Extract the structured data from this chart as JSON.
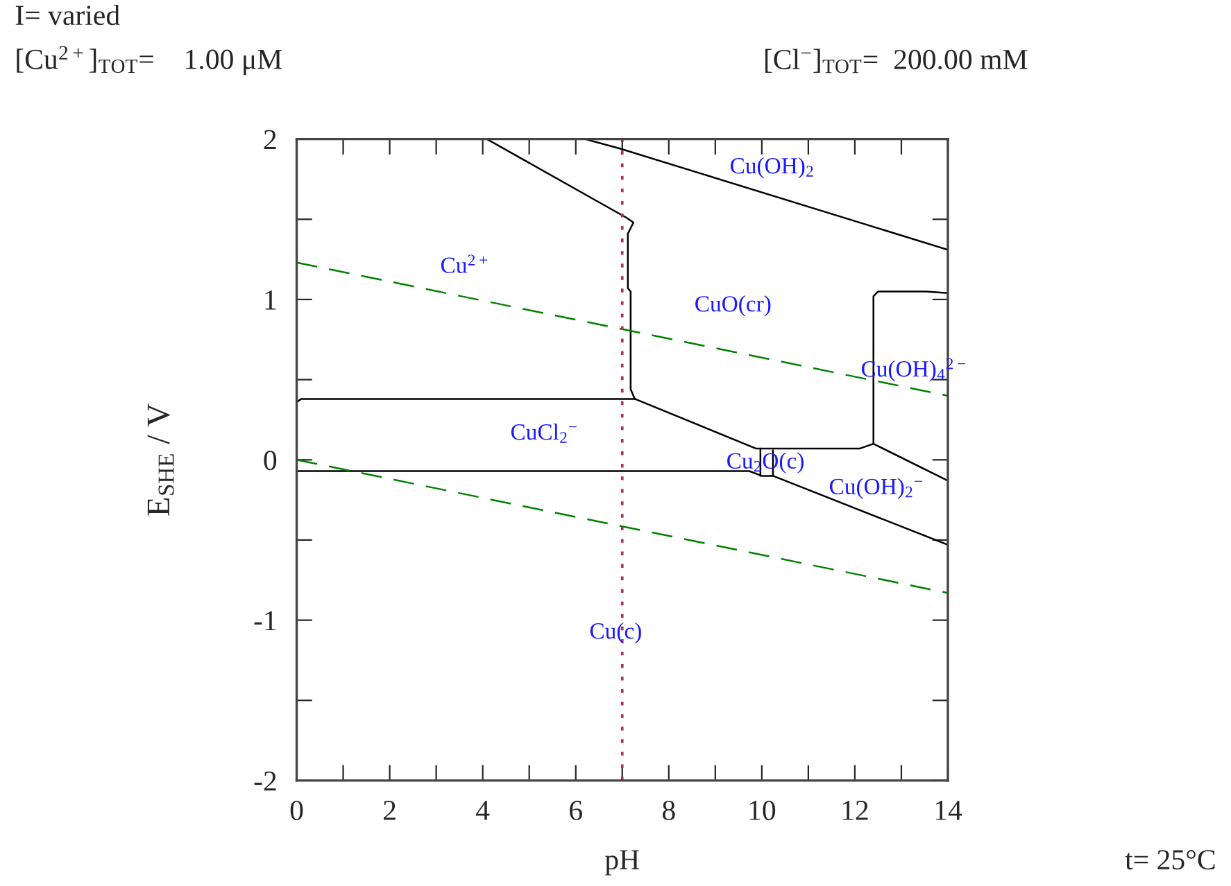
{
  "chart_data": {
    "type": "line",
    "xlabel": "pH",
    "ylabel": "E$_{SHE}$ / V",
    "xlim": [
      0,
      14
    ],
    "ylim": [
      -2,
      2
    ],
    "xticks": [
      0,
      {
        "value": 1,
        "label": null
      },
      2,
      {
        "value": 3,
        "label": null
      },
      4,
      {
        "value": 5,
        "label": null
      },
      6,
      {
        "value": 7,
        "label": null
      },
      8,
      {
        "value": 9,
        "label": null
      },
      10,
      {
        "value": 11,
        "label": null
      },
      12,
      {
        "value": 13,
        "label": null
      },
      14
    ],
    "yticks": [
      -2,
      {
        "value": -1.5,
        "label": null
      },
      -1,
      {
        "value": -0.5,
        "label": null
      },
      0,
      {
        "value": 0.5,
        "label": null
      },
      1,
      {
        "value": 1.5,
        "label": null
      },
      2
    ],
    "grid": false,
    "legend": false,
    "marker": "none",
    "series": [
      {
        "color": "#000000",
        "line_style": "solid",
        "x": [
          4.09,
          7.09,
          7.24,
          7.12,
          7.12,
          7.18,
          7.18,
          7.27,
          9.88,
          12.1,
          12.4,
          12.4,
          12.5,
          13.53,
          14
        ],
        "values": [
          2.0,
          1.51,
          1.48,
          1.41,
          1.07,
          1.05,
          0.44,
          0.38,
          0.07,
          0.07,
          0.1,
          1.02,
          1.05,
          1.05,
          1.04
        ]
      },
      {
        "color": "#000000",
        "line_style": "solid",
        "x": [
          0,
          0.1,
          7.27
        ],
        "values": [
          0.36,
          0.38,
          0.38
        ]
      },
      {
        "color": "#000000",
        "line_style": "solid",
        "x": [
          12.4,
          14
        ],
        "values": [
          0.1,
          -0.13
        ]
      },
      {
        "color": "#000000",
        "line_style": "solid",
        "x": [
          0,
          9.73,
          10.0,
          10.24,
          14
        ],
        "values": [
          -0.07,
          -0.07,
          -0.1,
          -0.1,
          -0.53
        ]
      },
      {
        "color": "#000000",
        "line_style": "solid",
        "x": [
          9.97,
          9.97
        ],
        "values": [
          0.07,
          -0.1
        ]
      },
      {
        "color": "#000000",
        "line_style": "solid",
        "x": [
          10.24,
          10.24
        ],
        "values": [
          0.06,
          -0.1
        ]
      },
      {
        "color": "#000000",
        "line_style": "solid",
        "x": [
          6.2,
          6.96,
          14
        ],
        "values": [
          2.0,
          1.94,
          1.31
        ]
      },
      {
        "color": "#008000",
        "line_style": "dashed",
        "x": [
          0,
          14
        ],
        "values": [
          1.23,
          0.4
        ]
      },
      {
        "color": "#008000",
        "line_style": "dashed",
        "x": [
          0,
          14
        ],
        "values": [
          0.0,
          -0.83
        ]
      }
    ],
    "ref_lines": [
      {
        "axis": "x",
        "value": 7,
        "color": "#b03050",
        "line_style": "dotted"
      }
    ],
    "annotations": [
      "I= varied",
      "[Cu$^{2+}$]$_{TOT}$=    1.00 μM",
      "[Cl$^{−}$]$_{TOT}$=  200.00 mM",
      "t= 25°C",
      "Cu$^{2+}$",
      "Cu(OH)$_{2}$",
      "CuO(cr)",
      "Cu(OH)$_{4}$$^{2−}$",
      "CuCl$_{2}$$^{−}$",
      "Cu$_{2}$O(c)",
      "Cu(OH)$_{2}$$^{−}$",
      "Cu(c)"
    ]
  }
}
